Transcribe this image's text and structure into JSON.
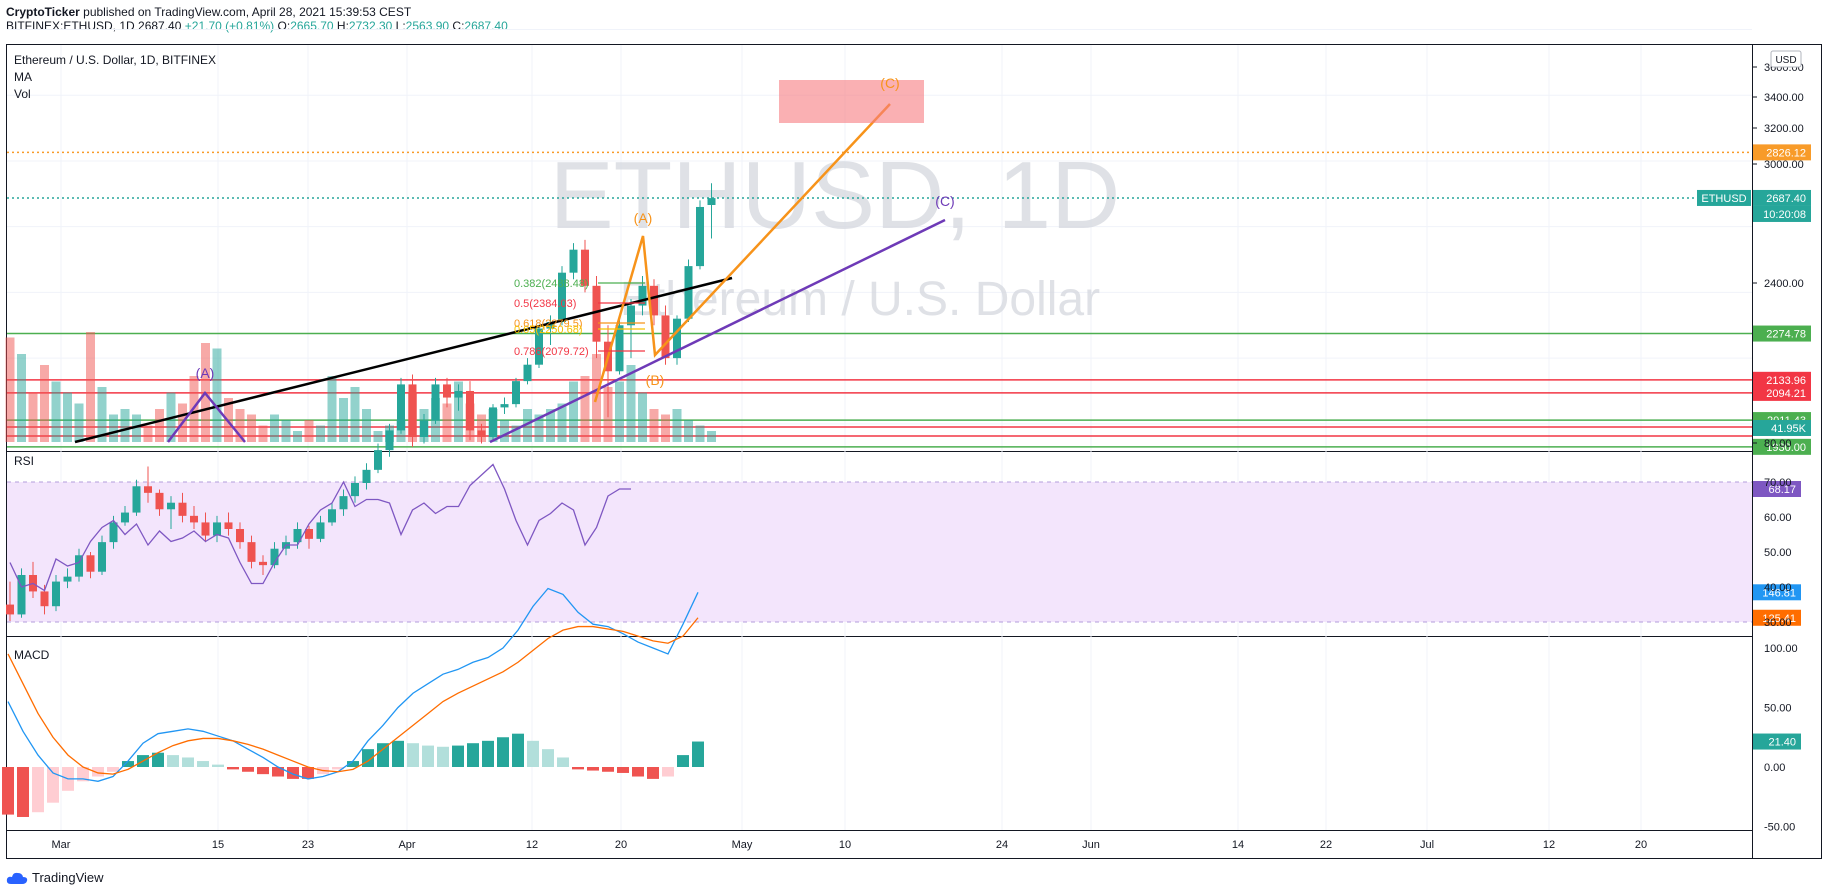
{
  "header": {
    "publisher": "CryptoTicker",
    "published_text": "published on TradingView.com, April 28, 2021 15:39:53 CEST",
    "symbol": "BITFINEX:ETHUSD, 1D",
    "last": "2687.40",
    "change": "+21.70 (+0.81%)",
    "o_label": "O:",
    "o": "2665.70",
    "h_label": "H:",
    "h": "2732.30",
    "l_label": "L:",
    "l": "2563.90",
    "c_label": "C:",
    "c": "2687.40"
  },
  "pane_main": {
    "title": "Ethereum / U.S. Dollar, 1D, BITFINEX",
    "indicators": [
      "MA",
      "Vol"
    ],
    "watermark_symbol": "ETHUSD, 1D",
    "watermark_name": "Ethereum / U.S. Dollar",
    "currency_badge": "USD"
  },
  "pane_rsi": {
    "title": "RSI",
    "value_label": "68.17"
  },
  "pane_macd": {
    "title": "MACD"
  },
  "footer": {
    "brand": "TradingView"
  },
  "colors": {
    "up": "#26a69a",
    "down": "#ef5350",
    "fib_ext": "#f89b29",
    "abc_orange": "#f7931a",
    "abc_purple": "#6e3ab7",
    "rsi_line": "#7e57c2",
    "rsi_fill": "#f3e5fc",
    "macd_line": "#2196f3",
    "signal_line": "#ff6d00",
    "support_green": "#4caf50",
    "resist_red": "#f23645",
    "trend_black": "#000000"
  },
  "chart_data": [
    {
      "type": "candlestick",
      "title": "Ethereum / U.S. Dollar, 1D, BITFINEX",
      "x_axis_ticks": [
        "Mar",
        "15",
        "23",
        "Apr",
        "12",
        "20",
        "May",
        "10",
        "24",
        "Jun",
        "14",
        "22",
        "Jul",
        "12",
        "20"
      ],
      "y_axis_ticks": [
        "3600.00",
        "3400.00",
        "3200.00",
        "3000.00",
        "2400.00",
        "80.00"
      ],
      "price_labels": [
        {
          "text": "2826.12",
          "value": 2826.12,
          "color": "#f89b29"
        },
        {
          "text": "2687.40",
          "value": 2687.4,
          "color": "#26a69a",
          "symbol": "ETHUSD",
          "countdown": "10:20:08"
        },
        {
          "text": "2274.78",
          "value": 2274.78,
          "color": "#4caf50"
        },
        {
          "text": "2133.96",
          "value": 2133.96,
          "color": "#f23645"
        },
        {
          "text": "2094.21",
          "value": 2094.21,
          "color": "#f23645"
        },
        {
          "text": "2011.43",
          "value": 2011.43,
          "color": "#4caf50"
        },
        {
          "text": "1930.00",
          "value": 1930.0,
          "color": "#4caf50"
        },
        {
          "text": "41.95K",
          "value": 41950,
          "color": "#26a69a"
        }
      ],
      "horizontal_levels": [
        {
          "value": 2826.12,
          "style": "dotted",
          "color": "#f89b29"
        },
        {
          "value": 2687.4,
          "style": "dotted",
          "color": "#26a69a"
        },
        {
          "value": 2274.78,
          "style": "solid",
          "color": "#4caf50"
        },
        {
          "value": 2133.96,
          "style": "solid",
          "color": "#f23645"
        },
        {
          "value": 2094.21,
          "style": "solid",
          "color": "#f23645"
        },
        {
          "value": 2011.43,
          "style": "solid",
          "color": "#4caf50"
        },
        {
          "value": 1930.0,
          "style": "solid",
          "color": "#4caf50"
        }
      ],
      "fib_labels": [
        {
          "text": "0.382(2488.48)",
          "color": "#4caf50"
        },
        {
          "text": "0.5(2384.03)",
          "color": "#f23645"
        },
        {
          "text": "0.618(2279.5)",
          "color": "#f7931a"
        },
        {
          "text": "0.65(2250.68)",
          "color": "#f7c100"
        },
        {
          "text": "0.786(2079.72)",
          "color": "#f23645"
        }
      ],
      "wave_labels": [
        {
          "text": "(A)",
          "color": "#f7931a"
        },
        {
          "text": "(B)",
          "color": "#f7931a"
        },
        {
          "text": "(C)",
          "color": "#f7931a"
        },
        {
          "text": "(A)",
          "color": "#6e3ab7"
        },
        {
          "text": "(C)",
          "color": "#6e3ab7"
        }
      ],
      "candles": [
        {
          "o": 1450,
          "h": 1520,
          "l": 1400,
          "c": 1420
        },
        {
          "o": 1420,
          "h": 1560,
          "l": 1410,
          "c": 1540
        },
        {
          "o": 1540,
          "h": 1580,
          "l": 1470,
          "c": 1490
        },
        {
          "o": 1490,
          "h": 1510,
          "l": 1420,
          "c": 1445
        },
        {
          "o": 1445,
          "h": 1540,
          "l": 1430,
          "c": 1520
        },
        {
          "o": 1520,
          "h": 1560,
          "l": 1500,
          "c": 1535
        },
        {
          "o": 1535,
          "h": 1620,
          "l": 1520,
          "c": 1600
        },
        {
          "o": 1600,
          "h": 1610,
          "l": 1530,
          "c": 1550
        },
        {
          "o": 1550,
          "h": 1660,
          "l": 1540,
          "c": 1640
        },
        {
          "o": 1640,
          "h": 1720,
          "l": 1620,
          "c": 1700
        },
        {
          "o": 1700,
          "h": 1750,
          "l": 1690,
          "c": 1730
        },
        {
          "o": 1730,
          "h": 1830,
          "l": 1720,
          "c": 1810
        },
        {
          "o": 1810,
          "h": 1870,
          "l": 1760,
          "c": 1790
        },
        {
          "o": 1790,
          "h": 1800,
          "l": 1720,
          "c": 1740
        },
        {
          "o": 1740,
          "h": 1780,
          "l": 1680,
          "c": 1760
        },
        {
          "o": 1760,
          "h": 1790,
          "l": 1700,
          "c": 1720
        },
        {
          "o": 1720,
          "h": 1750,
          "l": 1680,
          "c": 1700
        },
        {
          "o": 1700,
          "h": 1730,
          "l": 1640,
          "c": 1660
        },
        {
          "o": 1660,
          "h": 1720,
          "l": 1640,
          "c": 1700
        },
        {
          "o": 1700,
          "h": 1730,
          "l": 1660,
          "c": 1680
        },
        {
          "o": 1680,
          "h": 1700,
          "l": 1620,
          "c": 1640
        },
        {
          "o": 1640,
          "h": 1660,
          "l": 1560,
          "c": 1580
        },
        {
          "o": 1580,
          "h": 1600,
          "l": 1540,
          "c": 1570
        },
        {
          "o": 1570,
          "h": 1640,
          "l": 1560,
          "c": 1620
        },
        {
          "o": 1620,
          "h": 1660,
          "l": 1600,
          "c": 1640
        },
        {
          "o": 1640,
          "h": 1700,
          "l": 1620,
          "c": 1680
        },
        {
          "o": 1680,
          "h": 1690,
          "l": 1620,
          "c": 1650
        },
        {
          "o": 1650,
          "h": 1720,
          "l": 1640,
          "c": 1700
        },
        {
          "o": 1700,
          "h": 1760,
          "l": 1690,
          "c": 1740
        },
        {
          "o": 1740,
          "h": 1800,
          "l": 1720,
          "c": 1780
        },
        {
          "o": 1780,
          "h": 1840,
          "l": 1760,
          "c": 1820
        },
        {
          "o": 1820,
          "h": 1880,
          "l": 1800,
          "c": 1860
        },
        {
          "o": 1860,
          "h": 1940,
          "l": 1850,
          "c": 1920
        },
        {
          "o": 1920,
          "h": 2000,
          "l": 1900,
          "c": 1980
        },
        {
          "o": 1980,
          "h": 2140,
          "l": 1970,
          "c": 2120
        },
        {
          "o": 2120,
          "h": 2150,
          "l": 1930,
          "c": 1960
        },
        {
          "o": 1960,
          "h": 2030,
          "l": 1940,
          "c": 2010
        },
        {
          "o": 2010,
          "h": 2140,
          "l": 2000,
          "c": 2120
        },
        {
          "o": 2120,
          "h": 2140,
          "l": 2050,
          "c": 2080
        },
        {
          "o": 2080,
          "h": 2120,
          "l": 2040,
          "c": 2100
        },
        {
          "o": 2100,
          "h": 2130,
          "l": 1950,
          "c": 1980
        },
        {
          "o": 1980,
          "h": 2000,
          "l": 1940,
          "c": 1960
        },
        {
          "o": 1960,
          "h": 2060,
          "l": 1950,
          "c": 2050
        },
        {
          "o": 2050,
          "h": 2080,
          "l": 2030,
          "c": 2060
        },
        {
          "o": 2060,
          "h": 2140,
          "l": 2050,
          "c": 2130
        },
        {
          "o": 2130,
          "h": 2200,
          "l": 2120,
          "c": 2180
        },
        {
          "o": 2180,
          "h": 2300,
          "l": 2170,
          "c": 2290
        },
        {
          "o": 2290,
          "h": 2330,
          "l": 2240,
          "c": 2310
        },
        {
          "o": 2310,
          "h": 2480,
          "l": 2300,
          "c": 2460
        },
        {
          "o": 2460,
          "h": 2550,
          "l": 2440,
          "c": 2530
        },
        {
          "o": 2530,
          "h": 2560,
          "l": 2400,
          "c": 2420
        },
        {
          "o": 2420,
          "h": 2450,
          "l": 2200,
          "c": 2250
        },
        {
          "o": 2250,
          "h": 2300,
          "l": 2020,
          "c": 2160
        },
        {
          "o": 2160,
          "h": 2330,
          "l": 2150,
          "c": 2300
        },
        {
          "o": 2300,
          "h": 2380,
          "l": 2200,
          "c": 2360
        },
        {
          "o": 2360,
          "h": 2450,
          "l": 2330,
          "c": 2420
        },
        {
          "o": 2420,
          "h": 2440,
          "l": 2300,
          "c": 2330
        },
        {
          "o": 2330,
          "h": 2360,
          "l": 2180,
          "c": 2200
        },
        {
          "o": 2200,
          "h": 2330,
          "l": 2180,
          "c": 2320
        },
        {
          "o": 2320,
          "h": 2500,
          "l": 2310,
          "c": 2480
        },
        {
          "o": 2480,
          "h": 2680,
          "l": 2470,
          "c": 2660
        },
        {
          "o": 2666,
          "h": 2732,
          "l": 2564,
          "c": 2687
        }
      ],
      "volume_rel": [
        0.95,
        0.8,
        0.45,
        0.7,
        0.55,
        0.45,
        0.35,
        1.0,
        0.5,
        0.25,
        0.3,
        0.25,
        0.15,
        0.3,
        0.45,
        0.35,
        0.6,
        0.9,
        0.85,
        0.4,
        0.3,
        0.25,
        0.15,
        0.25,
        0.2,
        0.1,
        0.2,
        0.15,
        0.6,
        0.4,
        0.5,
        0.3,
        0.1,
        0.15,
        0.2,
        0.45,
        0.3,
        0.4,
        0.35,
        0.55,
        0.35,
        0.25,
        0.3,
        0.2,
        0.15,
        0.3,
        0.25,
        0.3,
        0.35,
        0.55,
        0.6,
        0.8,
        0.5,
        0.55,
        0.7,
        0.45,
        0.3,
        0.25,
        0.3,
        0.2,
        0.15,
        0.1
      ]
    },
    {
      "type": "line",
      "title": "RSI",
      "y_axis_ticks": [
        "70.00",
        "60.00",
        "50.00",
        "40.00",
        "30.00"
      ],
      "ylim": [
        30,
        70
      ],
      "series": [
        {
          "values": [
            47,
            40,
            41,
            39,
            48,
            46,
            47,
            53,
            57,
            59,
            55,
            58,
            52,
            56,
            53,
            54,
            56,
            53,
            55,
            54,
            47,
            41,
            41,
            47,
            52,
            52,
            58,
            62,
            64,
            70,
            63,
            65,
            65,
            64,
            55,
            62,
            64,
            61,
            63,
            63,
            69,
            72,
            75,
            68,
            59,
            52,
            59,
            61,
            64,
            62,
            52,
            57,
            66,
            68,
            68
          ]
        }
      ]
    },
    {
      "type": "line",
      "title": "MACD",
      "y_axis_ticks": [
        "100.00",
        "50.00",
        "0.00",
        "-50.00"
      ],
      "ylim": [
        -75,
        175
      ],
      "value_labels": [
        "146.81",
        "125.41",
        "21.40"
      ],
      "series": [
        {
          "values": [
            55,
            30,
            10,
            -5,
            -10,
            -10,
            -12,
            -8,
            5,
            20,
            28,
            30,
            32,
            30,
            26,
            22,
            15,
            8,
            0,
            -6,
            -10,
            -8,
            -4,
            5,
            22,
            35,
            50,
            62,
            70,
            78,
            82,
            88,
            92,
            100,
            115,
            135,
            150,
            145,
            130,
            120,
            118,
            112,
            105,
            100,
            95,
            120,
            146.81
          ]
        },
        {
          "values": [
            95,
            70,
            45,
            25,
            10,
            0,
            -5,
            -6,
            -2,
            5,
            12,
            18,
            22,
            24,
            24,
            22,
            19,
            15,
            10,
            5,
            0,
            -3,
            -4,
            -2,
            5,
            15,
            25,
            35,
            45,
            55,
            62,
            68,
            74,
            80,
            88,
            98,
            108,
            115,
            118,
            118,
            116,
            114,
            110,
            106,
            104,
            110,
            125.41
          ]
        },
        {
          "values": [
            -40,
            -42,
            -38,
            -30,
            -20,
            -12,
            -8,
            -4,
            5,
            10,
            12,
            10,
            8,
            5,
            2,
            -2,
            -4,
            -6,
            -8,
            -10,
            -10,
            -6,
            -2,
            5,
            15,
            20,
            22,
            20,
            18,
            17,
            18,
            20,
            22,
            25,
            28,
            22,
            15,
            8,
            -2,
            -3,
            -4,
            -5,
            -8,
            -10,
            -8,
            10,
            21.4
          ]
        }
      ],
      "macd_series": [
        {
          "values": [
            55,
            30,
            10,
            -5,
            -10,
            -10,
            -12,
            -8,
            5,
            20,
            28,
            30,
            32,
            30,
            26,
            22,
            15,
            8,
            0,
            -6,
            -10,
            -8,
            -4,
            5,
            22,
            35,
            50,
            62,
            70,
            78,
            82,
            88,
            92,
            100,
            115,
            135,
            150,
            145,
            130,
            120,
            118,
            112,
            105,
            100,
            95,
            120,
            146.81
          ]
        },
        {
          "values": [
            95,
            70,
            45,
            25,
            10,
            0,
            -5,
            -6,
            -2,
            5,
            12,
            18,
            22,
            24,
            24,
            22,
            19,
            15,
            10,
            5,
            0,
            -3,
            -4,
            -2,
            5,
            15,
            25,
            35,
            45,
            55,
            62,
            68,
            74,
            80,
            88,
            98,
            108,
            115,
            118,
            118,
            116,
            114,
            110,
            106,
            104,
            110,
            125.41
          ]
        }
      ]
    }
  ]
}
